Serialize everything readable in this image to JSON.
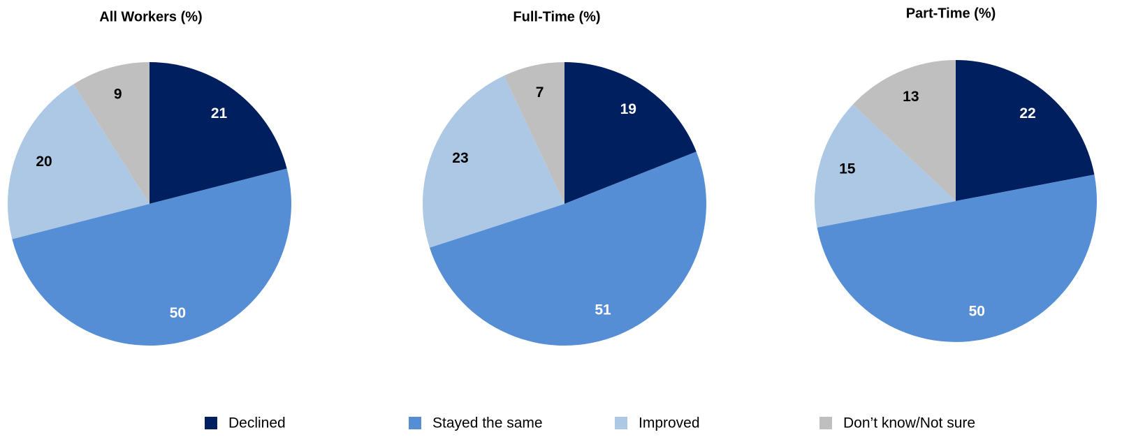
{
  "chart_data": [
    {
      "type": "pie",
      "title": "All Workers (%)",
      "categories": [
        "Declined",
        "Stayed the same",
        "Improved",
        "Don’t know/Not sure"
      ],
      "values": [
        21,
        50,
        20,
        9
      ],
      "colors": [
        "#001f5f",
        "#558ed5",
        "#adc8e4",
        "#bfbfbf"
      ]
    },
    {
      "type": "pie",
      "title": "Full-Time (%)",
      "categories": [
        "Declined",
        "Stayed the same",
        "Improved",
        "Don’t know/Not sure"
      ],
      "values": [
        19,
        51,
        23,
        7
      ],
      "colors": [
        "#001f5f",
        "#558ed5",
        "#adc8e4",
        "#bfbfbf"
      ]
    },
    {
      "type": "pie",
      "title": "Part-Time (%)",
      "categories": [
        "Declined",
        "Stayed the same",
        "Improved",
        "Don’t know/Not sure"
      ],
      "values": [
        22,
        50,
        15,
        13
      ],
      "colors": [
        "#001f5f",
        "#558ed5",
        "#adc8e4",
        "#bfbfbf"
      ]
    }
  ]
}
